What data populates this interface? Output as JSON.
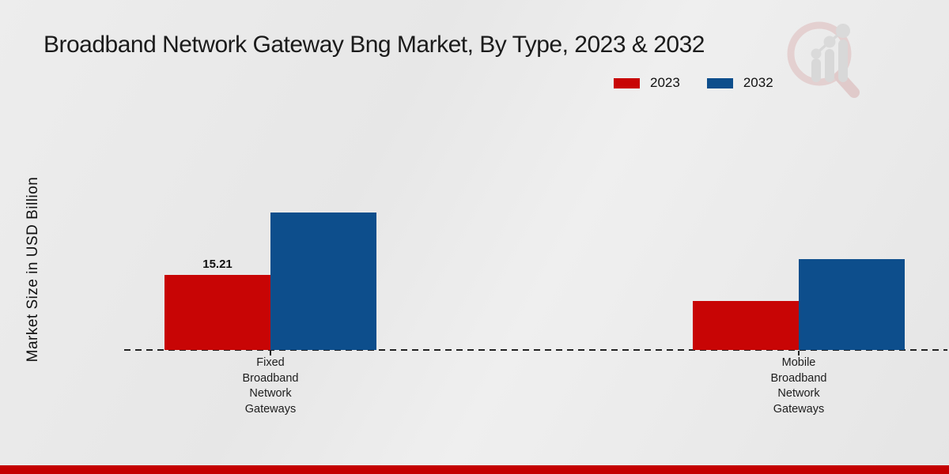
{
  "title": "Broadband Network Gateway Bng Market, By Type, 2023 & 2032",
  "y_axis_label": "Market Size in USD Billion",
  "legend": [
    {
      "label": "2023",
      "color": "#c80505"
    },
    {
      "label": "2032",
      "color": "#0d4e8c"
    }
  ],
  "axis_color": "#222222",
  "footer_bar_color": "#c40000",
  "watermark_icon": "magnifier-bar-chart-logo",
  "chart_data": {
    "type": "bar",
    "categories": [
      "Fixed Broadband Network Gateways",
      "Mobile Broadband Network Gateways"
    ],
    "series": [
      {
        "name": "2023",
        "color": "#c80505",
        "values": [
          15.21,
          10.0
        ],
        "labels": [
          "15.21",
          ""
        ]
      },
      {
        "name": "2032",
        "color": "#0d4e8c",
        "values": [
          27.9,
          18.4
        ],
        "labels": [
          "",
          ""
        ]
      }
    ],
    "title": "Broadband Network Gateway Bng Market, By Type, 2023 & 2032",
    "xlabel": "",
    "ylabel": "Market Size in USD Billion",
    "ylim": [
      0,
      30
    ],
    "grid": false,
    "baseline_style": "dashed",
    "legend_position": "top-right",
    "value_labels_visible": [
      "15.21"
    ]
  }
}
